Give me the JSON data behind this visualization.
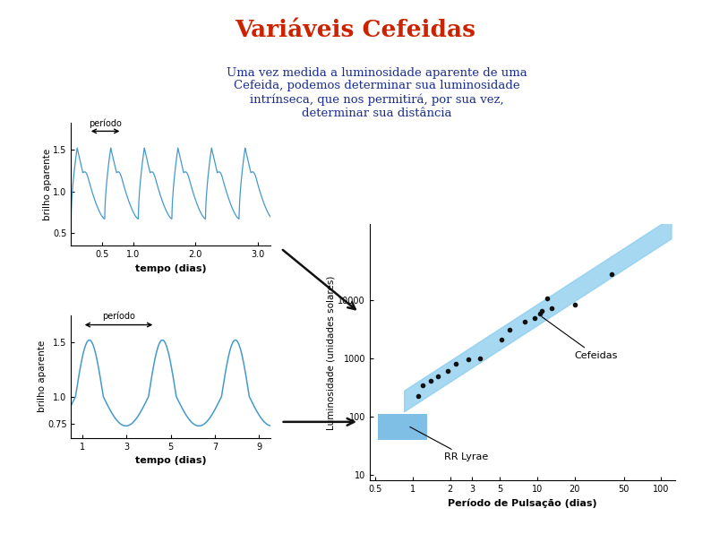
{
  "title": "Variáveis Cefeidas",
  "title_color": "#cc2200",
  "body_text": "Uma vez medida a luminosidade aparente de uma\nCefeida, podemos determinar sua luminosidade\nintrínseca, que nos permitirá, por sua vez,\ndeterminar sua distância",
  "body_text_color": "#1a2f8f",
  "background_color": "#ffffff",
  "plot1_ylabel": "brilho aparente",
  "plot1_xlabel": "tempo (dias)",
  "plot1_period_label": "período",
  "plot2_ylabel": "brilho aparente",
  "plot2_xlabel": "tempo (dias)",
  "plot2_period_label": "período",
  "scatter_ylabel": "Luminosidade (unidades solares)",
  "scatter_xlabel": "Período de Pulsação (dias)",
  "scatter_label_cefeidas": "Cefeidas",
  "scatter_label_rr": "RR Lyrae",
  "scatter_xticks": [
    0.5,
    1,
    2,
    3,
    5,
    10,
    20,
    50,
    100
  ],
  "scatter_yticks": [
    10,
    100,
    1000,
    10000
  ],
  "scatter_data_x": [
    1.1,
    1.2,
    1.4,
    1.6,
    1.9,
    2.2,
    2.8,
    3.5,
    5.2,
    6.0,
    8.0,
    9.5,
    10.5,
    11.0,
    12.0,
    13.0,
    20.0,
    40.0
  ],
  "scatter_data_y": [
    230,
    340,
    420,
    500,
    600,
    820,
    950,
    1000,
    2100,
    3100,
    4200,
    5000,
    5800,
    6500,
    10800,
    7200,
    8500,
    28000
  ],
  "trend_x": [
    0.9,
    1.5,
    3.0,
    7.0,
    15.0,
    40.0,
    90.0
  ],
  "trend_y": [
    200,
    450,
    1000,
    3500,
    9000,
    35000,
    130000
  ],
  "rr_lyrae_xlo": 0.52,
  "rr_lyrae_xhi": 1.3,
  "rr_lyrae_ylo": 40,
  "rr_lyrae_yhi": 110,
  "plot_line_color": "#4499cc",
  "trend_color": "#88ccee",
  "scatter_dot_color": "#111111",
  "rr_rect_color": "#55aadd",
  "arrow_color": "#111111"
}
